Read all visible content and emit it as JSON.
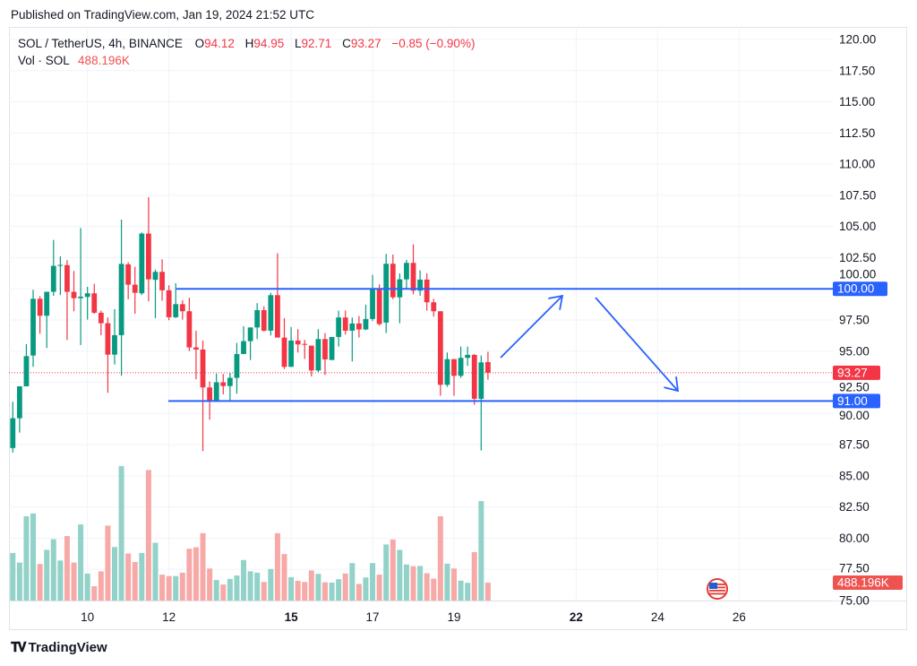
{
  "published": "Published on TradingView.com, Jan 19, 2024 21:52 UTC",
  "legend": {
    "symbol": "SOL / TetherUS, 4h, BINANCE",
    "o_label": "O",
    "o_value": "94.12",
    "h_label": "H",
    "h_value": "94.95",
    "l_label": "L",
    "l_value": "92.71",
    "c_label": "C",
    "c_value": "93.27",
    "change": "−0.85 (−0.90%)",
    "vol_label": "Vol · SOL",
    "vol_value": "488.196K"
  },
  "footer": {
    "logo_text": "TradingView"
  },
  "colors": {
    "up": "#089981",
    "down": "#f23645",
    "vol_up": "#92d2c8",
    "vol_down": "#f7a9a7",
    "drawing": "#2962ff"
  },
  "chart_data": {
    "type": "candlestick",
    "symbol": "SOL/USDT",
    "interval": "4h",
    "start": "2024-01-08T04:00",
    "ylim": [
      75,
      120
    ],
    "price_ticks": [
      "120.00",
      "117.50",
      "115.00",
      "112.50",
      "110.00",
      "107.50",
      "105.00",
      "102.50",
      "100.00",
      "97.50",
      "95.00",
      "92.50",
      "90.00",
      "87.50",
      "85.00",
      "82.50",
      "80.00",
      "77.50",
      "75.00"
    ],
    "x_ticks": [
      {
        "label": "10",
        "date": "2024-01-10",
        "bold": false
      },
      {
        "label": "12",
        "date": "2024-01-12",
        "bold": false
      },
      {
        "label": "15",
        "date": "2024-01-15",
        "bold": true
      },
      {
        "label": "17",
        "date": "2024-01-17",
        "bold": false
      },
      {
        "label": "19",
        "date": "2024-01-19",
        "bold": false
      },
      {
        "label": "22",
        "date": "2024-01-22",
        "bold": true
      },
      {
        "label": "24",
        "date": "2024-01-24",
        "bold": false
      },
      {
        "label": "26",
        "date": "2024-01-26",
        "bold": false
      }
    ],
    "grid": true,
    "ohlc_columns": [
      "open",
      "high",
      "low",
      "close"
    ],
    "ohlc": [
      [
        87.23,
        90.94,
        86.87,
        89.62
      ],
      [
        89.62,
        92.18,
        88.47,
        92.18
      ],
      [
        92.18,
        95.56,
        92.18,
        94.6
      ],
      [
        94.65,
        99.92,
        93.74,
        99.2
      ],
      [
        99.2,
        99.4,
        96.4,
        97.84
      ],
      [
        97.84,
        99.76,
        95.25,
        99.76
      ],
      [
        99.76,
        103.92,
        99.44,
        101.84
      ],
      [
        101.84,
        102.6,
        99.5,
        101.92
      ],
      [
        101.9,
        102.3,
        95.9,
        99.76
      ],
      [
        99.76,
        101.43,
        98.2,
        99.25
      ],
      [
        99.25,
        104.88,
        95.49,
        99.37
      ],
      [
        99.35,
        100.16,
        97.53,
        99.64
      ],
      [
        99.64,
        100.4,
        98.0,
        98.08
      ],
      [
        98.08,
        98.25,
        96.28,
        97.24
      ],
      [
        97.24,
        97.7,
        91.66,
        94.72
      ],
      [
        94.72,
        98.37,
        93.93,
        96.28
      ],
      [
        96.28,
        105.55,
        93.02,
        102.0
      ],
      [
        101.96,
        102.13,
        99.16,
        100.33
      ],
      [
        100.33,
        101.77,
        98.0,
        99.68
      ],
      [
        99.64,
        104.52,
        99.5,
        104.43
      ],
      [
        104.43,
        107.35,
        99.0,
        100.76
      ],
      [
        100.72,
        101.55,
        97.65,
        101.36
      ],
      [
        101.36,
        102.37,
        99.04,
        99.88
      ],
      [
        99.88,
        100.28,
        97.48,
        97.72
      ],
      [
        97.72,
        100.45,
        97.65,
        98.77
      ],
      [
        98.77,
        99.08,
        97.53,
        98.2
      ],
      [
        98.2,
        99.28,
        95.01,
        95.3
      ],
      [
        95.3,
        96.64,
        92.74,
        95.13
      ],
      [
        95.13,
        95.85,
        86.99,
        92.09
      ],
      [
        92.09,
        92.57,
        89.5,
        91.01
      ],
      [
        91.01,
        93.2,
        91.01,
        92.5
      ],
      [
        92.5,
        93.17,
        91.54,
        92.2
      ],
      [
        92.2,
        93.26,
        91.01,
        92.86
      ],
      [
        92.86,
        95.66,
        91.59,
        94.77
      ],
      [
        94.77,
        97.0,
        94.77,
        95.8
      ],
      [
        95.8,
        96.9,
        94.29,
        96.9
      ],
      [
        96.9,
        98.85,
        95.97,
        98.29
      ],
      [
        98.29,
        98.6,
        96.57,
        96.64
      ],
      [
        96.64,
        99.68,
        96.26,
        99.49
      ],
      [
        99.49,
        102.85,
        96.09,
        96.09
      ],
      [
        96.09,
        97.65,
        93.57,
        93.74
      ],
      [
        93.74,
        96.93,
        93.74,
        95.85
      ],
      [
        95.85,
        96.76,
        94.89,
        95.54
      ],
      [
        95.58,
        95.9,
        94.37,
        95.56
      ],
      [
        95.44,
        95.44,
        92.97,
        93.45
      ],
      [
        93.45,
        96.76,
        93.33,
        95.97
      ],
      [
        95.97,
        96.45,
        93.09,
        94.34
      ],
      [
        94.29,
        96.14,
        94.29,
        96.14
      ],
      [
        96.14,
        98.25,
        95.37,
        97.7
      ],
      [
        97.7,
        98.25,
        96.33,
        96.64
      ],
      [
        96.64,
        97.7,
        94.17,
        97.22
      ],
      [
        97.22,
        97.82,
        96.09,
        96.74
      ],
      [
        96.74,
        98.73,
        96.69,
        97.58
      ],
      [
        97.58,
        101.12,
        97.41,
        99.97
      ],
      [
        99.97,
        100.36,
        97.05,
        97.17
      ],
      [
        97.29,
        102.8,
        96.45,
        102.01
      ],
      [
        102.01,
        102.75,
        99.16,
        99.32
      ],
      [
        99.32,
        101.24,
        97.24,
        100.76
      ],
      [
        100.76,
        102.32,
        100.04,
        102.08
      ],
      [
        102.08,
        103.57,
        99.56,
        99.85
      ],
      [
        99.85,
        101.48,
        99.44,
        100.74
      ],
      [
        100.74,
        101.24,
        98.25,
        98.92
      ],
      [
        98.92,
        99.2,
        97.77,
        98.2
      ],
      [
        98.2,
        98.2,
        91.42,
        92.3
      ],
      [
        92.3,
        94.89,
        92.14,
        94.36
      ],
      [
        94.36,
        94.36,
        91.42,
        93.02
      ],
      [
        93.02,
        95.37,
        92.86,
        94.46
      ],
      [
        94.46,
        95.37,
        93.81,
        94.7
      ],
      [
        94.7,
        94.77,
        90.7,
        91.18
      ],
      [
        91.18,
        94.65,
        87.03,
        94.1
      ],
      [
        94.12,
        94.95,
        92.71,
        93.27
      ]
    ],
    "volume_unit": "K SOL",
    "volume": [
      1256,
      1007,
      2205,
      2278,
      971,
      1336,
      1613,
      1059,
      1694,
      1007,
      1993,
      723,
      394,
      781,
      1964,
      1409,
      3504,
      1241,
      1022,
      1256,
      3402,
      1518,
      694,
      657,
      657,
      745,
      1365,
      1402,
      1767,
      854,
      555,
      438,
      584,
      672,
      1073,
      781,
      745,
      504,
      840,
      1767,
      1226,
      628,
      533,
      504,
      803,
      715,
      496,
      489,
      577,
      723,
      993,
      453,
      621,
      993,
      694,
      1475,
      1606,
      1336,
      956,
      913,
      920,
      730,
      591,
      2205,
      978,
      854,
      540,
      482,
      1278,
      2599,
      488.196
    ],
    "last_price": {
      "value": 93.27,
      "label": "93.27"
    },
    "last_volume_label": "488.196K",
    "horizontal_levels": [
      {
        "price": 100,
        "label": "100.00"
      },
      {
        "price": 91,
        "label": "91.00"
      }
    ],
    "event_icon": "us-flag-icon"
  }
}
